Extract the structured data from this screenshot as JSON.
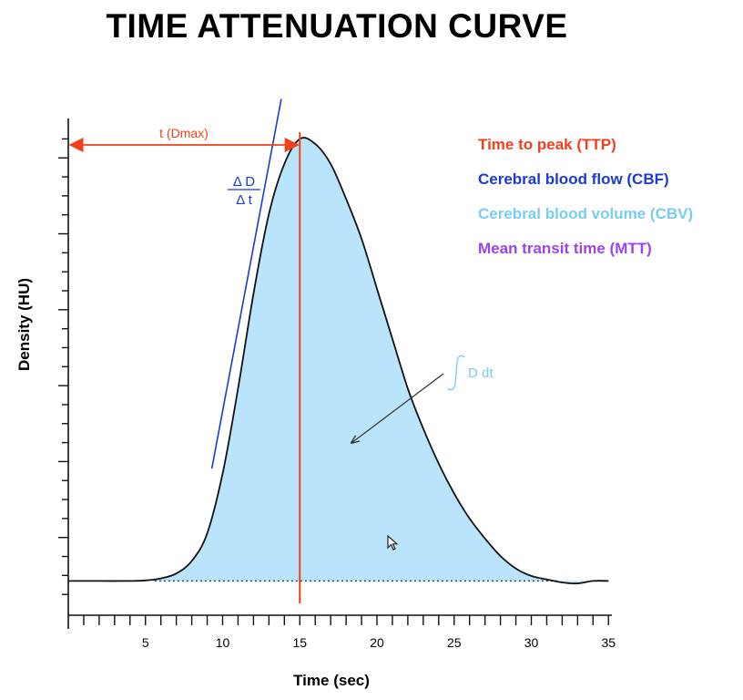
{
  "title": "TIME ATTENUATION CURVE",
  "legend": [
    {
      "label": "Time to peak (TTP)",
      "color": "#f0401c"
    },
    {
      "label": "Cerebral blood flow (CBF)",
      "color": "#1b3bd1"
    },
    {
      "label": "Cerebral blood volume (CBV)",
      "color": "#79cdf2"
    },
    {
      "label": "Mean transit time (MTT)",
      "color": "#9b44e8"
    }
  ],
  "annotations": {
    "t_dmax": "t (Dmax)",
    "delta_d": "Δ D",
    "delta_t": "Δ t",
    "integral": "D dt"
  },
  "chart_data": {
    "type": "area",
    "title": "TIME ATTENUATION CURVE",
    "xlabel": "Time (sec)",
    "ylabel": "Density (HU)",
    "xlim": [
      0,
      35
    ],
    "ylim": [
      0,
      100
    ],
    "x_ticks": [
      5,
      10,
      15,
      20,
      25,
      30,
      35
    ],
    "x_minor_step": 1,
    "y_minor_step": 3.8,
    "y_major_step": 15.2,
    "baseline": 6.5,
    "peak_time": 15,
    "series": [
      {
        "name": "Density",
        "x": [
          0,
          2,
          4,
          5,
          6,
          7,
          8,
          9,
          10,
          11,
          12,
          13,
          14,
          15,
          16,
          17,
          18,
          19,
          20,
          21,
          22,
          23,
          24,
          25,
          26,
          27,
          28,
          29,
          30,
          31,
          32,
          33,
          34,
          35
        ],
        "y": [
          6.5,
          6.5,
          6.5,
          6.6,
          7.0,
          8.0,
          10.5,
          16.0,
          28.0,
          45.0,
          64.0,
          80.0,
          90.0,
          95.0,
          94.0,
          90.0,
          83.0,
          75.0,
          65.0,
          55.0,
          45.0,
          37.0,
          30.0,
          24.0,
          19.0,
          15.0,
          11.5,
          9.0,
          7.5,
          6.8,
          6.2,
          6.0,
          6.5,
          6.5
        ]
      }
    ],
    "tangent": {
      "x": [
        9.3,
        13.8
      ],
      "y": [
        29,
        103
      ]
    }
  }
}
